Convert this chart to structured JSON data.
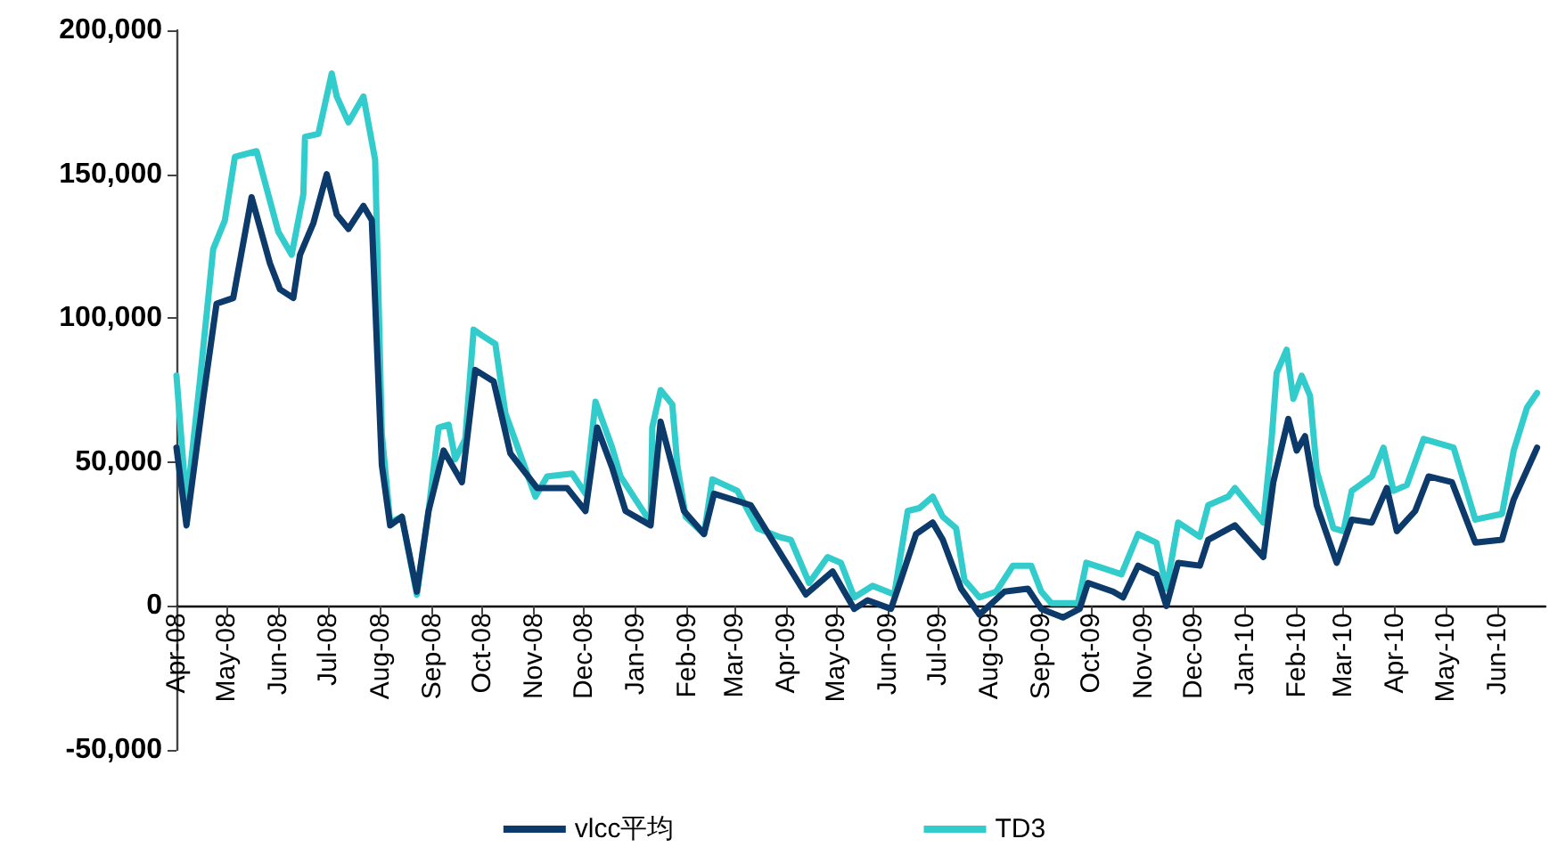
{
  "chart_data": {
    "type": "line",
    "ylim": [
      -50000,
      200000
    ],
    "yticks": [
      {
        "value": -50000,
        "label": "-50,000"
      },
      {
        "value": 0,
        "label": "0"
      },
      {
        "value": 50000,
        "label": "50,000"
      },
      {
        "value": 100000,
        "label": "100,000"
      },
      {
        "value": 150000,
        "label": "150,000"
      },
      {
        "value": 200000,
        "label": "200,000"
      }
    ],
    "xlim": [
      "2008-04-01",
      "2010-06-30"
    ],
    "xticks": [
      {
        "value": "2008-04-01",
        "label": "Apr-08"
      },
      {
        "value": "2008-05-01",
        "label": "May-08"
      },
      {
        "value": "2008-06-01",
        "label": "Jun-08"
      },
      {
        "value": "2008-07-01",
        "label": "Jul-08"
      },
      {
        "value": "2008-08-01",
        "label": "Aug-08"
      },
      {
        "value": "2008-09-01",
        "label": "Sep-08"
      },
      {
        "value": "2008-10-01",
        "label": "Oct-08"
      },
      {
        "value": "2008-11-01",
        "label": "Nov-08"
      },
      {
        "value": "2008-12-01",
        "label": "Dec-08"
      },
      {
        "value": "2009-01-01",
        "label": "Jan-09"
      },
      {
        "value": "2009-02-01",
        "label": "Feb-09"
      },
      {
        "value": "2009-03-01",
        "label": "Mar-09"
      },
      {
        "value": "2009-04-01",
        "label": "Apr-09"
      },
      {
        "value": "2009-05-01",
        "label": "May-09"
      },
      {
        "value": "2009-06-01",
        "label": "Jun-09"
      },
      {
        "value": "2009-07-01",
        "label": "Jul-09"
      },
      {
        "value": "2009-08-01",
        "label": "Aug-09"
      },
      {
        "value": "2009-09-01",
        "label": "Sep-09"
      },
      {
        "value": "2009-10-01",
        "label": "Oct-09"
      },
      {
        "value": "2009-11-01",
        "label": "Nov-09"
      },
      {
        "value": "2009-12-01",
        "label": "Dec-09"
      },
      {
        "value": "2010-01-01",
        "label": "Jan-10"
      },
      {
        "value": "2010-02-01",
        "label": "Feb-10"
      },
      {
        "value": "2010-03-01",
        "label": "Mar-10"
      },
      {
        "value": "2010-04-01",
        "label": "Apr-10"
      },
      {
        "value": "2010-05-01",
        "label": "May-10"
      },
      {
        "value": "2010-06-01",
        "label": "Jun-10"
      }
    ],
    "grid": false,
    "legend": "bottom",
    "marker": "none",
    "line_style": "solid",
    "series": [
      {
        "name": "vlcc平均",
        "color": "#0b3a6b",
        "x": [
          "2008-04-01",
          "2008-04-07",
          "2008-04-17",
          "2008-04-25",
          "2008-05-05",
          "2008-05-16",
          "2008-05-27",
          "2008-06-02",
          "2008-06-10",
          "2008-06-14",
          "2008-06-22",
          "2008-06-30",
          "2008-07-06",
          "2008-07-13",
          "2008-07-22",
          "2008-07-27",
          "2008-08-02",
          "2008-08-07",
          "2008-08-14",
          "2008-08-23",
          "2008-08-30",
          "2008-09-08",
          "2008-09-19",
          "2008-09-27",
          "2008-10-08",
          "2008-10-18",
          "2008-11-03",
          "2008-11-21",
          "2008-12-02",
          "2008-12-09",
          "2008-12-18",
          "2008-12-26",
          "2009-01-10",
          "2009-01-16",
          "2009-01-30",
          "2009-02-11",
          "2009-02-17",
          "2009-03-11",
          "2009-03-28",
          "2009-04-13",
          "2009-04-29",
          "2009-05-12",
          "2009-05-20",
          "2009-06-03",
          "2009-06-10",
          "2009-06-18",
          "2009-06-28",
          "2009-07-04",
          "2009-07-15",
          "2009-07-26",
          "2009-08-10",
          "2009-08-24",
          "2009-09-01",
          "2009-09-14",
          "2009-09-24",
          "2009-09-29",
          "2009-10-14",
          "2009-10-20",
          "2009-10-29",
          "2009-11-09",
          "2009-11-15",
          "2009-11-22",
          "2009-12-05",
          "2009-12-10",
          "2009-12-26",
          "2010-01-12",
          "2010-01-18",
          "2010-01-27",
          "2010-02-01",
          "2010-02-06",
          "2010-02-13",
          "2010-02-25",
          "2010-03-06",
          "2010-03-18",
          "2010-03-27",
          "2010-04-02",
          "2010-04-13",
          "2010-04-21",
          "2010-05-05",
          "2010-05-19",
          "2010-06-04",
          "2010-06-11",
          "2010-06-25"
        ],
        "values": [
          55000,
          28000,
          72000,
          105000,
          107000,
          142000,
          119000,
          110000,
          107000,
          122000,
          133000,
          150000,
          136000,
          131000,
          139000,
          134000,
          49000,
          28000,
          31000,
          5000,
          33000,
          54000,
          43000,
          82000,
          78000,
          53000,
          41000,
          41000,
          33000,
          62000,
          48000,
          33000,
          28000,
          64000,
          33000,
          25000,
          39000,
          35000,
          19000,
          4000,
          12000,
          -1000,
          2000,
          -1000,
          11000,
          25000,
          29000,
          23000,
          6000,
          -3000,
          5000,
          6000,
          -1000,
          -4000,
          -1000,
          8000,
          5000,
          3000,
          14000,
          11000,
          0,
          15000,
          14000,
          23000,
          28000,
          17000,
          43000,
          65000,
          54000,
          59000,
          35000,
          15000,
          30000,
          29000,
          41000,
          26000,
          33000,
          45000,
          43000,
          22000,
          23000,
          37000,
          55000
        ]
      },
      {
        "name": "TD3",
        "color": "#33cccc",
        "x": [
          "2008-04-01",
          "2008-04-07",
          "2008-04-15",
          "2008-04-23",
          "2008-04-30",
          "2008-05-06",
          "2008-05-19",
          "2008-06-01",
          "2008-06-09",
          "2008-06-16",
          "2008-06-17",
          "2008-06-25",
          "2008-07-03",
          "2008-07-06",
          "2008-07-13",
          "2008-07-22",
          "2008-07-29",
          "2008-08-02",
          "2008-08-07",
          "2008-08-14",
          "2008-08-23",
          "2008-08-30",
          "2008-09-05",
          "2008-09-11",
          "2008-09-15",
          "2008-09-21",
          "2008-09-26",
          "2008-10-01",
          "2008-10-09",
          "2008-10-15",
          "2008-10-20",
          "2008-11-02",
          "2008-11-09",
          "2008-11-24",
          "2008-12-02",
          "2008-12-08",
          "2008-12-18",
          "2008-12-23",
          "2009-01-01",
          "2009-01-10",
          "2009-01-11",
          "2009-01-16",
          "2009-01-23",
          "2009-01-26",
          "2009-01-31",
          "2009-02-11",
          "2009-02-16",
          "2009-03-03",
          "2009-03-15",
          "2009-03-28",
          "2009-04-04",
          "2009-04-15",
          "2009-04-26",
          "2009-05-04",
          "2009-05-12",
          "2009-05-23",
          "2009-06-05",
          "2009-06-13",
          "2009-06-20",
          "2009-06-28",
          "2009-07-04",
          "2009-07-12",
          "2009-07-17",
          "2009-07-26",
          "2009-08-05",
          "2009-08-15",
          "2009-08-26",
          "2009-09-01",
          "2009-09-07",
          "2009-09-23",
          "2009-09-28",
          "2009-10-14",
          "2009-10-19",
          "2009-10-29",
          "2009-11-09",
          "2009-11-15",
          "2009-11-22",
          "2009-12-05",
          "2009-12-10",
          "2009-12-22",
          "2009-12-26",
          "2010-01-12",
          "2010-01-17",
          "2010-01-20",
          "2010-01-26",
          "2010-01-30",
          "2010-02-04",
          "2010-02-09",
          "2010-02-13",
          "2010-02-23",
          "2010-03-01",
          "2010-03-06",
          "2010-03-18",
          "2010-03-25",
          "2010-03-31",
          "2010-04-08",
          "2010-04-18",
          "2010-05-06",
          "2010-05-19",
          "2010-06-04",
          "2010-06-11",
          "2010-06-19",
          "2010-06-25"
        ],
        "values": [
          80000,
          35000,
          78000,
          124000,
          134000,
          156000,
          158000,
          130000,
          122000,
          143000,
          163000,
          164000,
          185000,
          177000,
          168000,
          177000,
          155000,
          60000,
          29000,
          31000,
          4000,
          33000,
          62000,
          63000,
          51000,
          58000,
          96000,
          94000,
          91000,
          67000,
          59000,
          38000,
          45000,
          46000,
          39000,
          71000,
          55000,
          45000,
          37000,
          29000,
          62000,
          75000,
          70000,
          49000,
          31000,
          25000,
          44000,
          40000,
          27000,
          24000,
          23000,
          8000,
          17000,
          15000,
          3000,
          7000,
          4000,
          33000,
          34000,
          38000,
          31000,
          27000,
          9000,
          3000,
          5000,
          14000,
          14000,
          5000,
          1000,
          1000,
          15000,
          12000,
          11000,
          25000,
          22000,
          6000,
          29000,
          24000,
          35000,
          38000,
          41000,
          29000,
          58000,
          81000,
          89000,
          72000,
          80000,
          73000,
          47000,
          27000,
          26000,
          40000,
          45000,
          55000,
          40000,
          42000,
          58000,
          55000,
          30000,
          32000,
          54000,
          69000,
          74000
        ]
      }
    ]
  }
}
